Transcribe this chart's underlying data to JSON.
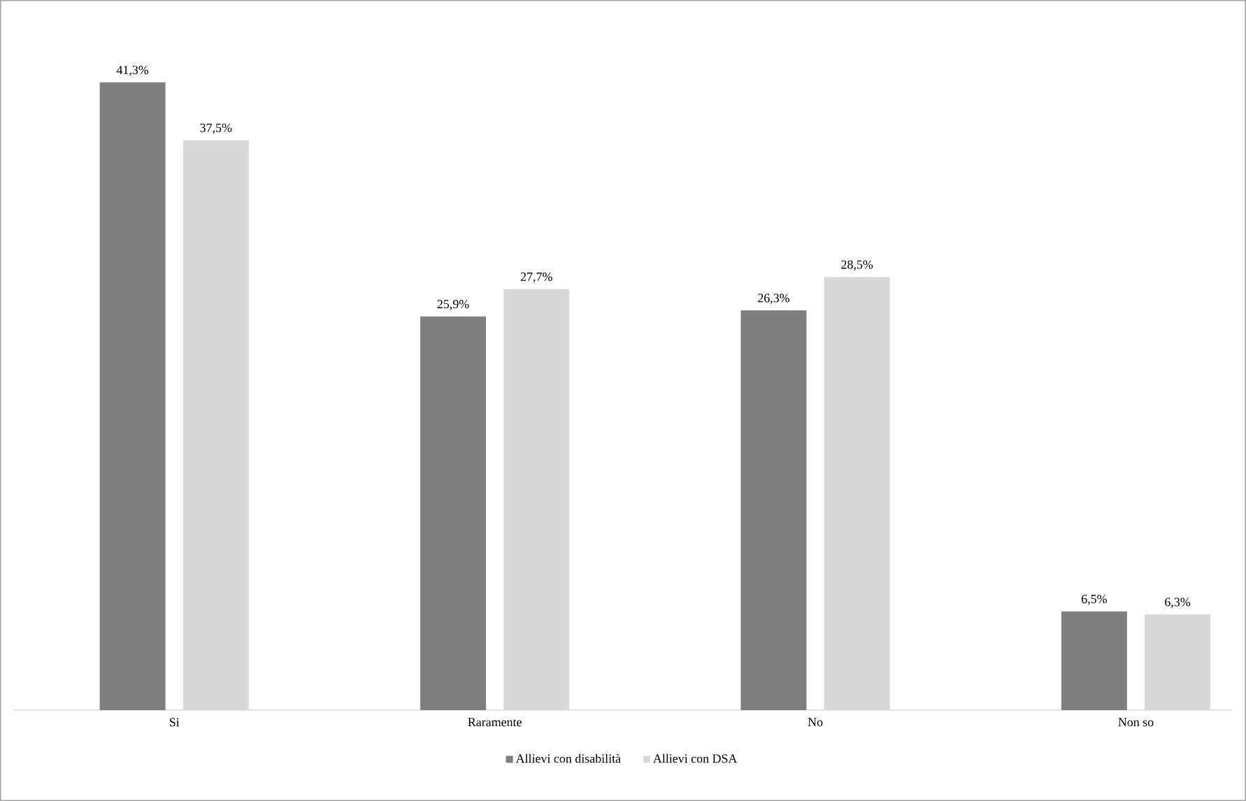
{
  "chart_data": {
    "type": "bar",
    "categories": [
      "Si",
      "Raramente",
      "No",
      "Non so"
    ],
    "series": [
      {
        "name": "Allievi con disabilità",
        "color": "#7f7f7f",
        "values": [
          41.3,
          25.9,
          26.3,
          6.5
        ],
        "value_labels": [
          "41,3%",
          "25,9%",
          "26,3%",
          "6,5%"
        ]
      },
      {
        "name": "Allievi con DSA",
        "color": "#d9d9d9",
        "values": [
          37.5,
          27.7,
          28.5,
          6.3
        ],
        "value_labels": [
          "37,5%",
          "27,7%",
          "28,5%",
          "6,3%"
        ]
      }
    ],
    "legend": "bottom"
  }
}
